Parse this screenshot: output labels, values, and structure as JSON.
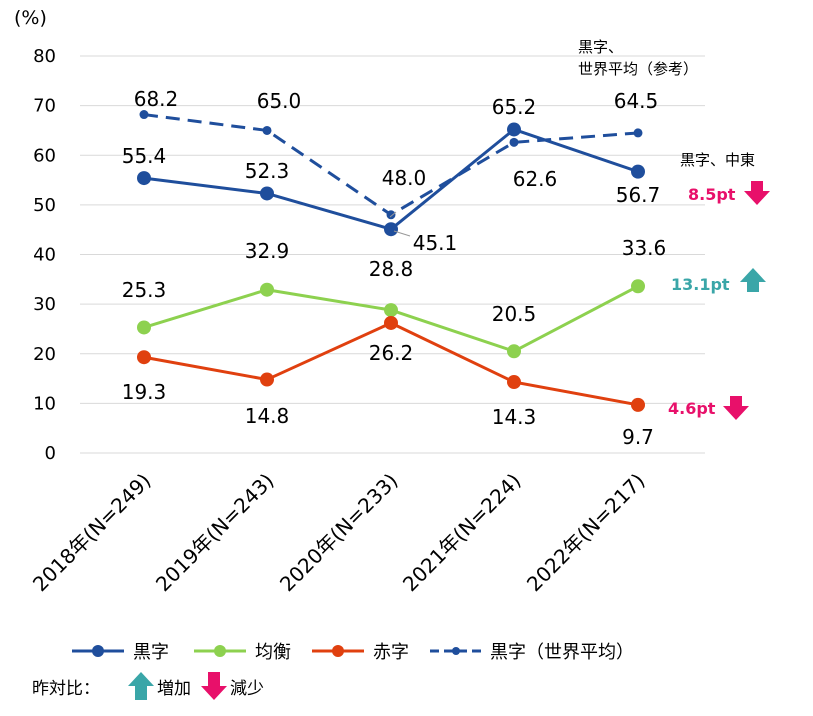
{
  "chart_data": {
    "type": "line",
    "unit_label": "(%)",
    "categories": [
      "2018年(N=249)",
      "2019年(N=243)",
      "2020年(N=233)",
      "2021年(N=224)",
      "2022年(N=217)"
    ],
    "ylim": [
      0,
      80
    ],
    "yticks": [
      "0",
      "10",
      "20",
      "30",
      "40",
      "50",
      "60",
      "70",
      "80"
    ],
    "grid": true,
    "series": [
      {
        "name": "黒字",
        "color": "#1f4e9c",
        "dashed": false,
        "values": [
          55.4,
          52.3,
          45.1,
          65.2,
          56.7
        ],
        "labels": [
          "55.4",
          "52.3",
          "45.1",
          "65.2",
          "56.7"
        ]
      },
      {
        "name": "均衡",
        "color": "#8dd14f",
        "dashed": false,
        "values": [
          25.3,
          32.9,
          28.8,
          20.5,
          33.6
        ],
        "labels": [
          "25.3",
          "32.9",
          "28.8",
          "20.5",
          "33.6"
        ]
      },
      {
        "name": "赤字",
        "color": "#e0400f",
        "dashed": false,
        "values": [
          19.3,
          14.8,
          26.2,
          14.3,
          9.7
        ],
        "labels": [
          "19.3",
          "14.8",
          "26.2",
          "14.3",
          "9.7"
        ]
      },
      {
        "name": "黒字（世界平均）",
        "color": "#1f4e9c",
        "dashed": true,
        "values": [
          68.2,
          65.0,
          48.0,
          62.6,
          64.5
        ],
        "labels": [
          "68.2",
          "65.0",
          "48.0",
          "62.6",
          "64.5"
        ]
      }
    ],
    "annotations": {
      "world_avg_line1": "黒字、",
      "world_avg_line2": "世界平均（参考）",
      "middle_east": "黒字、中東",
      "change_surplus": "8.5pt",
      "change_balanced": "13.1pt",
      "change_deficit": "4.6pt"
    },
    "legend_note": {
      "prefix": "昨対比：",
      "increase": "増加",
      "decrease": "減少"
    },
    "colors": {
      "increase": "#3aa6a8",
      "decrease": "#e8106a",
      "grid": "#d9d9d9"
    }
  }
}
